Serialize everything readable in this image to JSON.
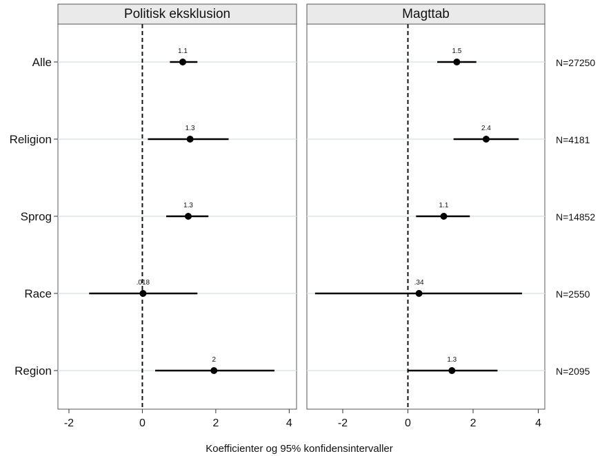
{
  "chart_data": {
    "type": "coefficient-plot",
    "xlabel": "Koefficienter og 95% konfidensintervaller",
    "categories": [
      "Alle",
      "Religion",
      "Sprog",
      "Race",
      "Region"
    ],
    "n_labels": [
      "N=27250",
      "N=4181",
      "N=14852",
      "N=2550",
      "N=2095"
    ],
    "xticks": [
      -2,
      0,
      2,
      4
    ],
    "xtick_labels": [
      "-2",
      "0",
      "2",
      "4"
    ],
    "reference_line": 0,
    "panels": [
      {
        "title": "Politisk eksklusion",
        "xlim": [
          -2.3,
          4.2
        ],
        "points": [
          {
            "category": "Alle",
            "estimate": 1.1,
            "ci": [
              0.75,
              1.5
            ],
            "label": "1.1"
          },
          {
            "category": "Religion",
            "estimate": 1.3,
            "ci": [
              0.15,
              2.35
            ],
            "label": "1.3"
          },
          {
            "category": "Sprog",
            "estimate": 1.25,
            "ci": [
              0.65,
              1.8
            ],
            "label": "1.3"
          },
          {
            "category": "Race",
            "estimate": 0.018,
            "ci": [
              -1.45,
              1.5
            ],
            "label": ".018"
          },
          {
            "category": "Region",
            "estimate": 1.95,
            "ci": [
              0.35,
              3.6
            ],
            "label": "2"
          }
        ]
      },
      {
        "title": "Magttab",
        "xlim": [
          -3.1,
          4.2
        ],
        "points": [
          {
            "category": "Alle",
            "estimate": 1.5,
            "ci": [
              0.9,
              2.1
            ],
            "label": "1.5"
          },
          {
            "category": "Religion",
            "estimate": 2.4,
            "ci": [
              1.4,
              3.4
            ],
            "label": "2.4"
          },
          {
            "category": "Sprog",
            "estimate": 1.1,
            "ci": [
              0.25,
              1.9
            ],
            "label": "1.1"
          },
          {
            "category": "Race",
            "estimate": 0.34,
            "ci": [
              -2.85,
              3.5
            ],
            "label": ".34"
          },
          {
            "category": "Region",
            "estimate": 1.35,
            "ci": [
              0.0,
              2.75
            ],
            "label": "1.3"
          }
        ]
      }
    ]
  }
}
